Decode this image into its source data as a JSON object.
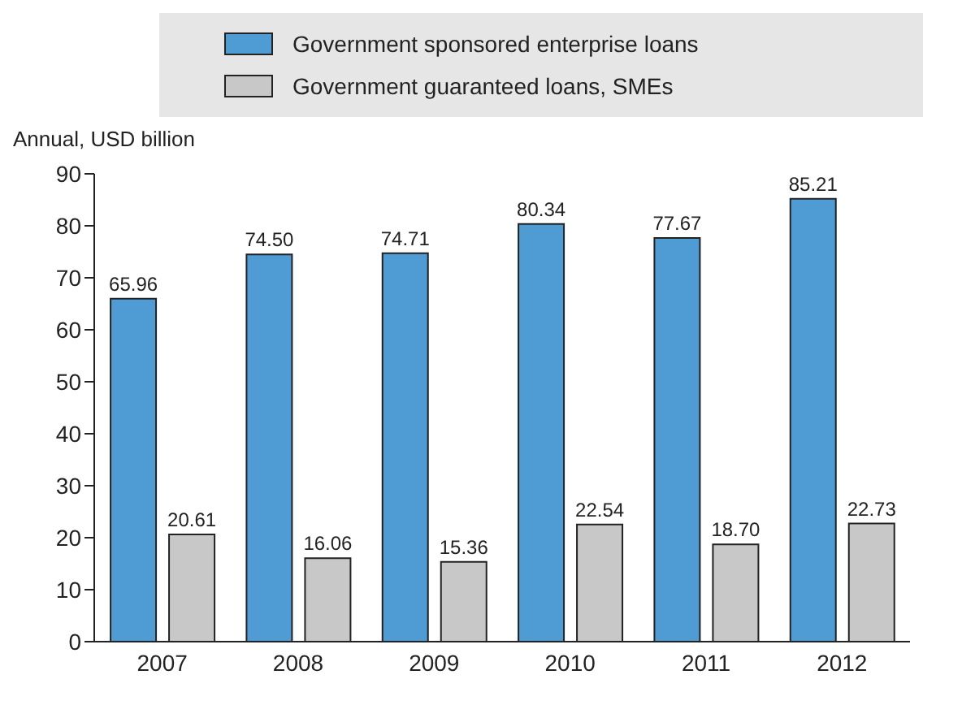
{
  "chart_data": {
    "type": "bar",
    "ylabel": "Annual, USD billion",
    "categories": [
      "2007",
      "2008",
      "2009",
      "2010",
      "2011",
      "2012"
    ],
    "series": [
      {
        "name": "Government sponsored enterprise loans",
        "color": "#4f9bd4",
        "values": [
          65.96,
          74.5,
          74.71,
          80.34,
          77.67,
          85.21
        ]
      },
      {
        "name": "Government guaranteed loans, SMEs",
        "color": "#c8c8c8",
        "values": [
          20.61,
          16.06,
          15.36,
          22.54,
          18.7,
          22.73
        ]
      }
    ],
    "value_labels": [
      [
        "65.96",
        "74.50",
        "74.71",
        "80.34",
        "77.67",
        "85.21"
      ],
      [
        "20.61",
        "16.06",
        "15.36",
        "22.54",
        "18.70",
        "22.73"
      ]
    ],
    "ylim": [
      0,
      90
    ],
    "yticks": [
      0,
      10,
      20,
      30,
      40,
      50,
      60,
      70,
      80,
      90
    ],
    "grid": false,
    "legend": "top"
  }
}
